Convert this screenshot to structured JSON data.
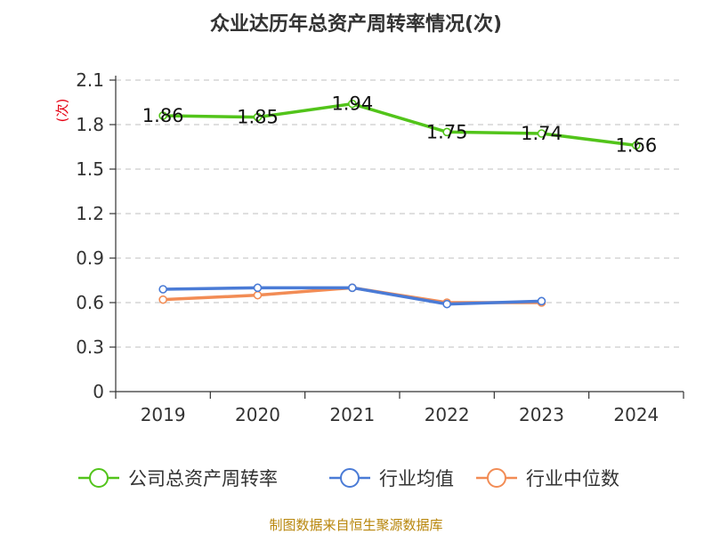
{
  "chart_data": {
    "type": "line",
    "title": "众业达历年总资产周转率情况(次)",
    "ylabel": "(次)",
    "categories": [
      "2019",
      "2020",
      "2021",
      "2022",
      "2023",
      "2024"
    ],
    "ylim": [
      0,
      2.1
    ],
    "yticks": [
      0,
      0.3,
      0.6,
      0.9,
      1.2,
      1.5,
      1.8,
      2.1
    ],
    "ytick_labels": [
      "0",
      "0.3",
      "0.6",
      "0.9",
      "1.2",
      "1.5",
      "1.8",
      "2.1"
    ],
    "grid": true,
    "legend_position": "bottom",
    "series": [
      {
        "name": "公司总资产周转率",
        "color": "#52c41a",
        "values": [
          1.86,
          1.85,
          1.94,
          1.75,
          1.74,
          1.66
        ],
        "labels": [
          "1.86",
          "1.85",
          "1.94",
          "1.75",
          "1.74",
          "1.66"
        ]
      },
      {
        "name": "行业均值",
        "color": "#4a7bd6",
        "values": [
          0.69,
          0.7,
          0.7,
          0.59,
          0.61,
          null
        ]
      },
      {
        "name": "行业中位数",
        "color": "#f28c55",
        "values": [
          0.62,
          0.65,
          0.7,
          0.6,
          0.6,
          null
        ]
      }
    ]
  },
  "source": "制图数据来自恒生聚源数据库"
}
